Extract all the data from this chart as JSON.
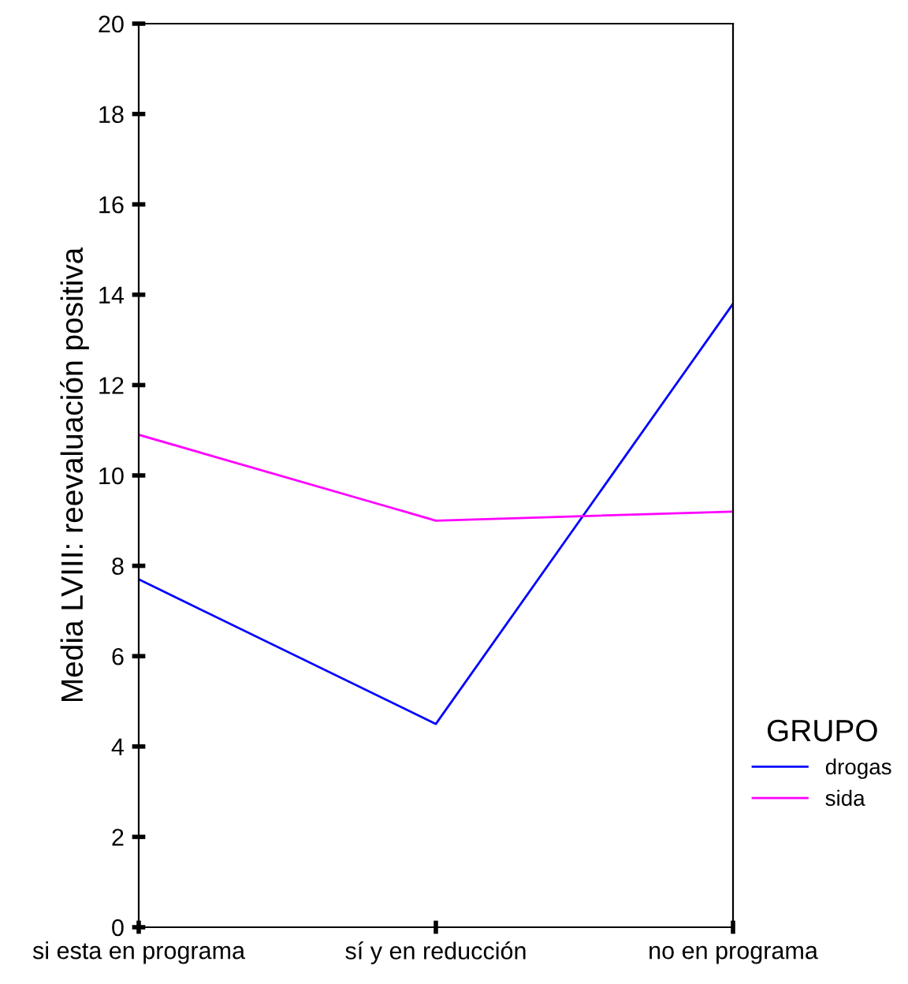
{
  "chart_data": {
    "type": "line",
    "ylabel": "Media LVIII: reevaluación positiva",
    "legend_title": "GRUPO",
    "categories": [
      "si esta en programa",
      "sí y en reducción",
      "no en programa"
    ],
    "series": [
      {
        "name": "drogas",
        "color": "#0000ff",
        "values": [
          7.7,
          4.5,
          13.8
        ]
      },
      {
        "name": "sida",
        "color": "#ff00ff",
        "values": [
          10.9,
          9.0,
          9.2
        ]
      }
    ],
    "ylim": [
      0,
      20
    ],
    "yticks": [
      0,
      2,
      4,
      6,
      8,
      10,
      12,
      14,
      16,
      18,
      20
    ],
    "grid": false,
    "legend": "right",
    "marker": "none",
    "line_style": "solid"
  }
}
